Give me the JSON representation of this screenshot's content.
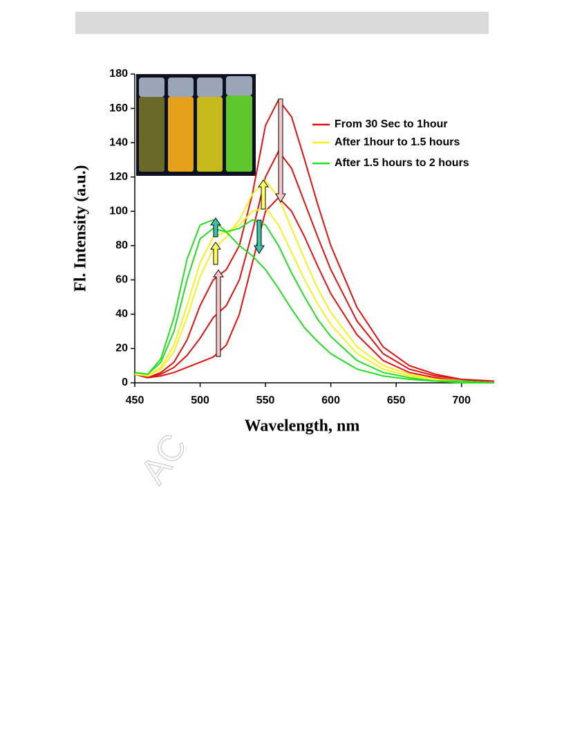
{
  "watermark": "AC",
  "chart_data": {
    "type": "line",
    "xlabel": "Wavelength, nm",
    "ylabel": "Fl. Intensity (a.u.)",
    "xlim": [
      450,
      725
    ],
    "ylim": [
      0,
      180
    ],
    "xticks": [
      450,
      500,
      550,
      600,
      650,
      700
    ],
    "yticks": [
      0,
      20,
      40,
      60,
      80,
      100,
      120,
      140,
      160,
      180
    ],
    "x": [
      450,
      460,
      470,
      480,
      490,
      500,
      510,
      520,
      530,
      540,
      550,
      560,
      570,
      580,
      590,
      600,
      620,
      640,
      660,
      680,
      700,
      725
    ],
    "series": [
      {
        "name": "From 30 Sec to 1hour",
        "color": "#e01010",
        "curves": [
          [
            5,
            3,
            4,
            6,
            9,
            12,
            15,
            22,
            40,
            70,
            100,
            108,
            100,
            85,
            68,
            52,
            28,
            13,
            6,
            3,
            1,
            0
          ],
          [
            5,
            3,
            5,
            9,
            16,
            26,
            38,
            45,
            60,
            88,
            120,
            135,
            125,
            105,
            85,
            66,
            36,
            17,
            8,
            4,
            2,
            0
          ],
          [
            5,
            3,
            6,
            12,
            25,
            45,
            60,
            66,
            80,
            110,
            150,
            165,
            155,
            130,
            104,
            80,
            44,
            21,
            10,
            5,
            2,
            1
          ]
        ]
      },
      {
        "name": "After 1hour to 1.5 hours",
        "color": "#f5f020",
        "curves": [
          [
            5,
            4,
            8,
            18,
            38,
            62,
            78,
            85,
            95,
            110,
            118,
            108,
            90,
            72,
            55,
            41,
            21,
            10,
            5,
            2,
            1,
            0
          ],
          [
            5,
            4,
            9,
            22,
            45,
            70,
            85,
            88,
            92,
            100,
            102,
            92,
            76,
            60,
            46,
            34,
            17,
            8,
            4,
            2,
            1,
            0
          ]
        ]
      },
      {
        "name": "After 1.5 hours to 2 hours",
        "color": "#22dd22",
        "curves": [
          [
            6,
            5,
            12,
            30,
            60,
            84,
            90,
            88,
            90,
            95,
            92,
            80,
            64,
            50,
            37,
            27,
            13,
            6,
            3,
            1,
            1,
            0
          ],
          [
            6,
            5,
            14,
            38,
            72,
            92,
            95,
            88,
            80,
            74,
            66,
            55,
            43,
            32,
            24,
            17,
            8,
            4,
            2,
            1,
            0,
            0
          ]
        ]
      }
    ]
  }
}
